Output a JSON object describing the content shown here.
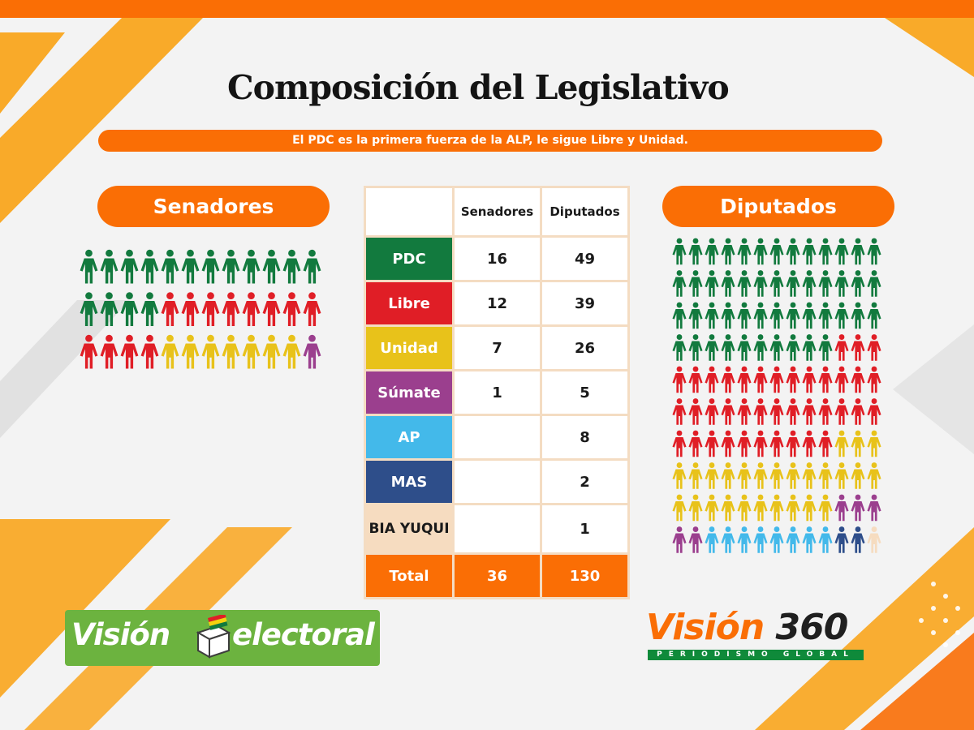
{
  "title": "Composición del Legislativo",
  "subtitle": "El PDC es la primera fuerza de la ALP, le sigue Libre y Unidad.",
  "colors": {
    "accent": "#fa6e05",
    "background": "#f3f3f3",
    "PDC": "#127a3e",
    "Libre": "#e01e26",
    "Unidad": "#e8c21a",
    "Sumate": "#9b3f8e",
    "AP": "#43b9ea",
    "MAS": "#2e4e8a",
    "BIA_YUQUI": "#f6dcc0"
  },
  "senadores_label": "Senadores",
  "diputados_label": "Diputados",
  "chart_data": {
    "type": "table",
    "columns": [
      "Senadores",
      "Diputados"
    ],
    "rows": [
      {
        "party": "PDC",
        "senadores": "16",
        "diputados": "49",
        "color": "#127a3e"
      },
      {
        "party": "Libre",
        "senadores": "12",
        "diputados": "39",
        "color": "#e01e26"
      },
      {
        "party": "Unidad",
        "senadores": "7",
        "diputados": "26",
        "color": "#e8c21a"
      },
      {
        "party": "Súmate",
        "senadores": "1",
        "diputados": "5",
        "color": "#9b3f8e"
      },
      {
        "party": "AP",
        "senadores": "",
        "diputados": "8",
        "color": "#43b9ea"
      },
      {
        "party": "MAS",
        "senadores": "",
        "diputados": "2",
        "color": "#2e4e8a"
      },
      {
        "party": "BIA YUQUI",
        "senadores": "",
        "diputados": "1",
        "color": "#f6dcc0"
      }
    ],
    "total": {
      "label": "Total",
      "senadores": "36",
      "diputados": "130"
    }
  },
  "logos": {
    "vision_electoral_word1": "Visión",
    "vision_electoral_word2": "electoral",
    "vision360_word1": "Visión",
    "vision360_word2": "360",
    "vision360_tagline": "PERIODISMO GLOBAL"
  }
}
